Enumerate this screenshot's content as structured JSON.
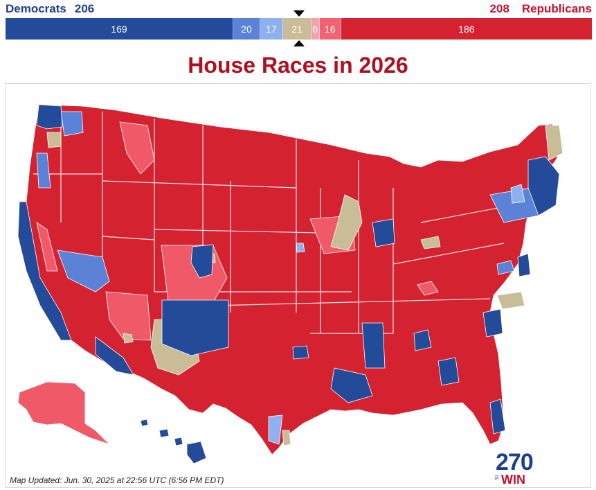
{
  "header": {
    "dem_label": "Democrats",
    "dem_total": "206",
    "rep_total": "208",
    "rep_label": "Republicans"
  },
  "bar": [
    {
      "label": "169",
      "value": 169,
      "color": "#244a9a",
      "category": "safe-democrat"
    },
    {
      "label": "20",
      "value": 20,
      "color": "#5b82d6",
      "category": "likely-democrat"
    },
    {
      "label": "17",
      "value": 17,
      "color": "#8fb0ee",
      "category": "leans-democrat"
    },
    {
      "label": "21",
      "value": 21,
      "color": "#c8bd97",
      "category": "toss-up"
    },
    {
      "label": "6",
      "value": 6,
      "color": "#f5a3ab",
      "category": "leans-republican"
    },
    {
      "label": "16",
      "value": 16,
      "color": "#f06372",
      "category": "likely-republican"
    },
    {
      "label": "186",
      "value": 186,
      "color": "#d42231",
      "category": "safe-republican"
    }
  ],
  "title": "House Races in 2026",
  "map": {
    "colors": {
      "safe_rep": "#d42231",
      "likely_rep": "#f05a68",
      "leans_rep": "#f5a3ab",
      "tossup": "#c8bd97",
      "leans_dem": "#8fb0ee",
      "likely_dem": "#5b82d6",
      "safe_dem": "#244a9a",
      "border": "#ffffff"
    }
  },
  "logo": {
    "number": "270",
    "to": "to",
    "win": "WIN"
  },
  "footer": "Map Updated: Jun. 30, 2025 at 22:56 UTC (6:56 PM EDT)"
}
